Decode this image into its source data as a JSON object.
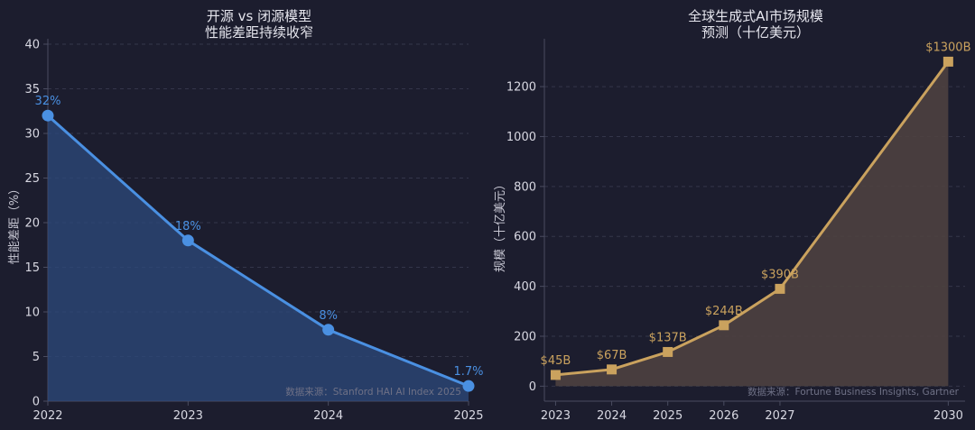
{
  "colors": {
    "background": "#1c1d2e",
    "text": "#e6e6ee",
    "axis": "#4a4c60",
    "grid": "#34364a",
    "source_text": "#6f7186",
    "blue": "#4a90e2",
    "blue_fill": "#2c4a7c",
    "gold": "#caa25e",
    "gold_fill": "#4e4140"
  },
  "chart_data": [
    {
      "type": "area",
      "title": "开源 vs 闭源模型",
      "subtitle": "性能差距持续收窄",
      "xlabel": "",
      "ylabel": "性能差距（%）",
      "x": [
        2022,
        2023,
        2024,
        2025
      ],
      "x_tick_labels": [
        "2022",
        "2023",
        "2024",
        "2025"
      ],
      "values": [
        32,
        18,
        8,
        1.7
      ],
      "data_labels": [
        "32%",
        "18%",
        "8%",
        "1.7%"
      ],
      "ylim": [
        0,
        40
      ],
      "y_ticks": [
        0,
        5,
        10,
        15,
        20,
        25,
        30,
        35,
        40
      ],
      "xlim": [
        2022,
        2025
      ],
      "grid": true,
      "marker": "circle",
      "source": "数据来源：Stanford HAI AI Index 2025"
    },
    {
      "type": "area",
      "title": "全球生成式AI市场规模",
      "subtitle": "预测（十亿美元）",
      "xlabel": "",
      "ylabel": "规模（十亿美元）",
      "x": [
        2023,
        2024,
        2025,
        2026,
        2027,
        2030
      ],
      "x_tick_labels": [
        "2023",
        "2024",
        "2025",
        "2026",
        "2027",
        "2030"
      ],
      "values": [
        45,
        67,
        137,
        244,
        390,
        1300
      ],
      "data_labels": [
        "$45B",
        "$67B",
        "$137B",
        "$244B",
        "$390B",
        "$1300B"
      ],
      "ylim": [
        -60,
        1370
      ],
      "y_ticks": [
        0,
        200,
        400,
        600,
        800,
        1000,
        1200
      ],
      "xlim": [
        2022.8,
        2030.3
      ],
      "grid": true,
      "marker": "square",
      "source": "数据来源：Fortune Business Insights, Gartner"
    }
  ]
}
